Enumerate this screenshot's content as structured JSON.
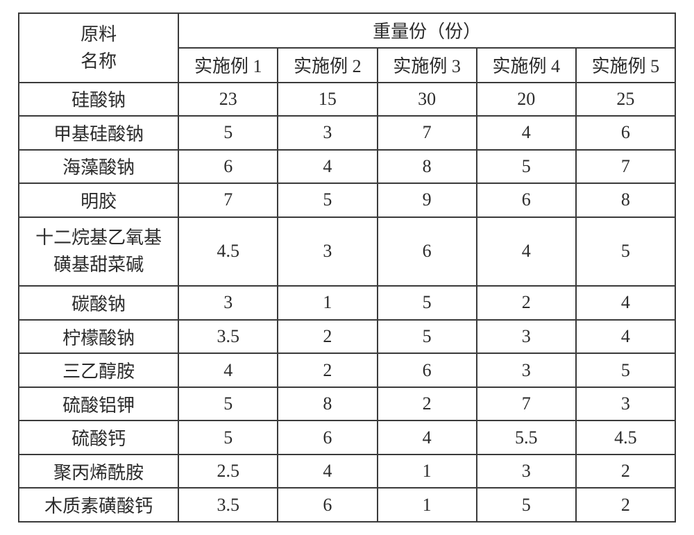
{
  "style": {
    "border_color": "#3a3a3a",
    "text_color": "#2b2b2b",
    "font_size_header": 26,
    "font_size_body": 26
  },
  "header": {
    "material_line1": "原料",
    "material_line2": "名称",
    "weight_parts": "重量份（份）",
    "cols": [
      "实施例 1",
      "实施例 2",
      "实施例 3",
      "实施例 4",
      "实施例 5"
    ]
  },
  "rows": [
    {
      "name_lines": [
        "硅酸钠"
      ],
      "vals": [
        "23",
        "15",
        "30",
        "20",
        "25"
      ]
    },
    {
      "name_lines": [
        "甲基硅酸钠"
      ],
      "vals": [
        "5",
        "3",
        "7",
        "4",
        "6"
      ]
    },
    {
      "name_lines": [
        "海藻酸钠"
      ],
      "vals": [
        "6",
        "4",
        "8",
        "5",
        "7"
      ]
    },
    {
      "name_lines": [
        "明胶"
      ],
      "vals": [
        "7",
        "5",
        "9",
        "6",
        "8"
      ]
    },
    {
      "name_lines": [
        "十二烷基乙氧基",
        "磺基甜菜碱"
      ],
      "vals": [
        "4.5",
        "3",
        "6",
        "4",
        "5"
      ]
    },
    {
      "name_lines": [
        "碳酸钠"
      ],
      "vals": [
        "3",
        "1",
        "5",
        "2",
        "4"
      ]
    },
    {
      "name_lines": [
        "柠檬酸钠"
      ],
      "vals": [
        "3.5",
        "2",
        "5",
        "3",
        "4"
      ]
    },
    {
      "name_lines": [
        "三乙醇胺"
      ],
      "vals": [
        "4",
        "2",
        "6",
        "3",
        "5"
      ]
    },
    {
      "name_lines": [
        "硫酸铝钾"
      ],
      "vals": [
        "5",
        "8",
        "2",
        "7",
        "3"
      ]
    },
    {
      "name_lines": [
        "硫酸钙"
      ],
      "vals": [
        "5",
        "6",
        "4",
        "5.5",
        "4.5"
      ]
    },
    {
      "name_lines": [
        "聚丙烯酰胺"
      ],
      "vals": [
        "2.5",
        "4",
        "1",
        "3",
        "2"
      ]
    },
    {
      "name_lines": [
        "木质素磺酸钙"
      ],
      "vals": [
        "3.5",
        "6",
        "1",
        "5",
        "2"
      ]
    }
  ]
}
